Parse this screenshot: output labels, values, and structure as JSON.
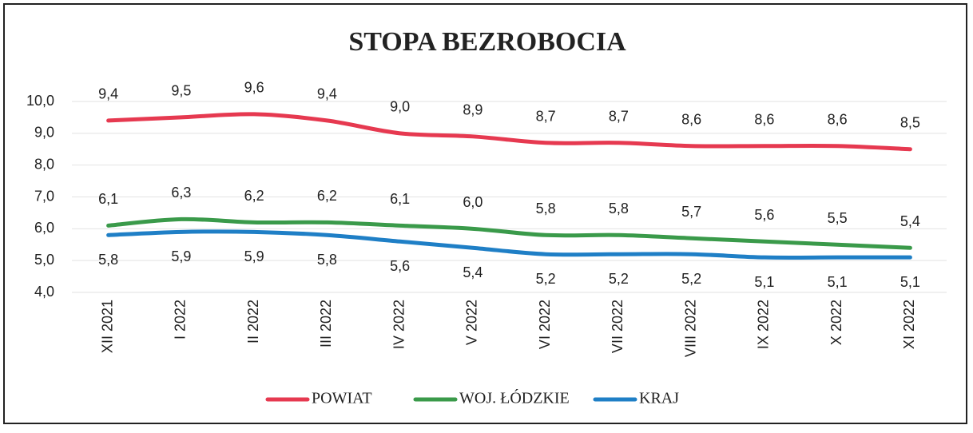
{
  "chart_data": {
    "type": "line",
    "title": "STOPA BEZROBOCIA",
    "categories": [
      "XII 2021",
      "I 2022",
      "II 2022",
      "III 2022",
      "IV 2022",
      "V 2022",
      "VI 2022",
      "VII 2022",
      "VIII 2022",
      "IX 2022",
      "X 2022",
      "XI 2022"
    ],
    "series": [
      {
        "name": "POWIAT",
        "color": "#e63950",
        "values": [
          9.4,
          9.5,
          9.6,
          9.4,
          9.0,
          8.9,
          8.7,
          8.7,
          8.6,
          8.6,
          8.6,
          8.5
        ],
        "value_labels": [
          "9,4",
          "9,5",
          "9,6",
          "9,4",
          "9,0",
          "8,9",
          "8,7",
          "8,7",
          "8,6",
          "8,6",
          "8,6",
          "8,5"
        ]
      },
      {
        "name": "WOJ. ŁÓDZKIE",
        "color": "#3a9a4a",
        "values": [
          6.1,
          6.3,
          6.2,
          6.2,
          6.1,
          6.0,
          5.8,
          5.8,
          5.7,
          5.6,
          5.5,
          5.4
        ],
        "value_labels": [
          "6,1",
          "6,3",
          "6,2",
          "6,2",
          "6,1",
          "6,0",
          "5,8",
          "5,8",
          "5,7",
          "5,6",
          "5,5",
          "5,4"
        ]
      },
      {
        "name": "KRAJ",
        "color": "#1f7fc6",
        "values": [
          5.8,
          5.9,
          5.9,
          5.8,
          5.6,
          5.4,
          5.2,
          5.2,
          5.2,
          5.1,
          5.1,
          5.1
        ],
        "value_labels": [
          "5,8",
          "5,9",
          "5,9",
          "5,8",
          "5,6",
          "5,4",
          "5,2",
          "5,2",
          "5,2",
          "5,1",
          "5,1",
          "5,1"
        ]
      }
    ],
    "ylim": [
      4,
      10
    ],
    "yticks": [
      {
        "value": 4,
        "label": "4,0"
      },
      {
        "value": 5,
        "label": "5,0"
      },
      {
        "value": 6,
        "label": "6,0"
      },
      {
        "value": 7,
        "label": "7,0"
      },
      {
        "value": 8,
        "label": "8,0"
      },
      {
        "value": 9,
        "label": "9,0"
      },
      {
        "value": 10,
        "label": "10,0"
      }
    ],
    "grid": true,
    "legend": "bottom"
  }
}
